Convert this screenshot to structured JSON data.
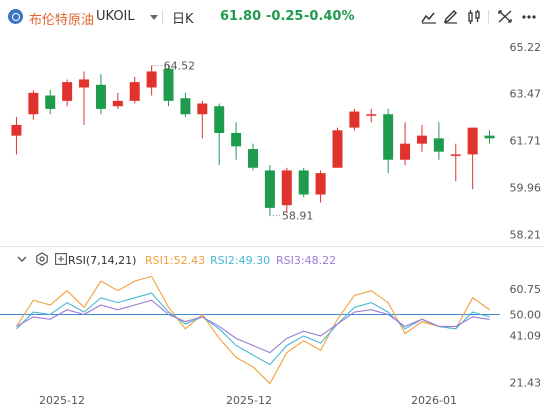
{
  "header": {
    "symbol_name": "布伦特原油",
    "symbol_code": "UKOIL",
    "period": "日K",
    "last_price": "61.80",
    "change": "-0.25",
    "change_pct": "-0.40%"
  },
  "colors": {
    "up": "#e0332e",
    "down": "#1f9b4d",
    "rsi1": "#f0a03c",
    "rsi2": "#47b6d6",
    "rsi3": "#9b7ad6",
    "rsi_ref": "#3c8cd6"
  },
  "toolbar_icons": [
    "chart-type-icon",
    "draw-icon",
    "settings-icon",
    "expand-icon",
    "more-icon"
  ],
  "chart_data": [
    {
      "type": "candlestick",
      "price_axis_ticks": [
        "65.22",
        "63.47",
        "61.71",
        "59.96",
        "58.21"
      ],
      "ylim": [
        58.0,
        65.4
      ],
      "annotations": {
        "high": "64.52",
        "low": "58.91"
      },
      "candles": [
        {
          "o": 61.9,
          "h": 62.6,
          "l": 61.2,
          "c": 62.3
        },
        {
          "o": 62.7,
          "h": 63.6,
          "l": 62.5,
          "c": 63.5
        },
        {
          "o": 63.4,
          "h": 63.6,
          "l": 62.7,
          "c": 62.9
        },
        {
          "o": 63.2,
          "h": 64.0,
          "l": 63.0,
          "c": 63.9
        },
        {
          "o": 63.7,
          "h": 64.3,
          "l": 62.3,
          "c": 64.0
        },
        {
          "o": 63.8,
          "h": 64.2,
          "l": 62.7,
          "c": 62.9
        },
        {
          "o": 63.0,
          "h": 63.5,
          "l": 62.9,
          "c": 63.2
        },
        {
          "o": 63.2,
          "h": 64.1,
          "l": 63.1,
          "c": 63.9
        },
        {
          "o": 63.7,
          "h": 64.52,
          "l": 63.4,
          "c": 64.3
        },
        {
          "o": 64.4,
          "h": 64.52,
          "l": 63.0,
          "c": 63.2
        },
        {
          "o": 63.3,
          "h": 63.5,
          "l": 62.6,
          "c": 62.7
        },
        {
          "o": 62.7,
          "h": 63.2,
          "l": 61.8,
          "c": 63.1
        },
        {
          "o": 63.0,
          "h": 63.1,
          "l": 60.8,
          "c": 62.0
        },
        {
          "o": 62.0,
          "h": 62.4,
          "l": 61.0,
          "c": 61.5
        },
        {
          "o": 61.4,
          "h": 61.6,
          "l": 60.6,
          "c": 60.7
        },
        {
          "o": 60.6,
          "h": 60.8,
          "l": 58.91,
          "c": 59.2
        },
        {
          "o": 59.3,
          "h": 60.7,
          "l": 59.0,
          "c": 60.6
        },
        {
          "o": 60.6,
          "h": 60.7,
          "l": 59.6,
          "c": 59.7
        },
        {
          "o": 59.7,
          "h": 60.6,
          "l": 59.4,
          "c": 60.5
        },
        {
          "o": 60.7,
          "h": 62.2,
          "l": 60.7,
          "c": 62.1
        },
        {
          "o": 62.2,
          "h": 62.9,
          "l": 62.1,
          "c": 62.8
        },
        {
          "o": 62.7,
          "h": 62.9,
          "l": 62.4,
          "c": 62.7
        },
        {
          "o": 62.7,
          "h": 62.9,
          "l": 60.5,
          "c": 61.0
        },
        {
          "o": 61.0,
          "h": 62.4,
          "l": 60.8,
          "c": 61.6
        },
        {
          "o": 61.6,
          "h": 62.3,
          "l": 61.3,
          "c": 61.9
        },
        {
          "o": 61.8,
          "h": 62.4,
          "l": 61.0,
          "c": 61.3
        },
        {
          "o": 61.2,
          "h": 61.6,
          "l": 60.2,
          "c": 61.2
        },
        {
          "o": 61.2,
          "h": 62.2,
          "l": 59.9,
          "c": 62.2
        },
        {
          "o": 61.9,
          "h": 62.1,
          "l": 61.6,
          "c": 61.8
        }
      ]
    },
    {
      "type": "line",
      "title": "RSI(7,14,21)",
      "axis_ticks": [
        "60.75",
        "50.00",
        "41.09",
        "21.43"
      ],
      "ylim": [
        20,
        67
      ],
      "reference_line": 50.0,
      "series": [
        {
          "name": "RSI1:52.43",
          "values": [
            45,
            56,
            54,
            60,
            53,
            64,
            60,
            64,
            66,
            53,
            44,
            50,
            40,
            32,
            28,
            21,
            34,
            39,
            35,
            48,
            58,
            60,
            55,
            42,
            47,
            45,
            44,
            57,
            52
          ]
        },
        {
          "name": "RSI2:49.30",
          "values": [
            44,
            51,
            50,
            55,
            51,
            57,
            55,
            57,
            59,
            51,
            46,
            49,
            44,
            37,
            33,
            29,
            37,
            41,
            38,
            46,
            53,
            55,
            51,
            44,
            48,
            45,
            44,
            51,
            49
          ]
        },
        {
          "name": "RSI3:48.22",
          "values": [
            45,
            49,
            48,
            52,
            50,
            54,
            52,
            54,
            56,
            50,
            47,
            49,
            45,
            40,
            37,
            34,
            40,
            43,
            41,
            46,
            51,
            52,
            50,
            45,
            48,
            45,
            45,
            49,
            48
          ]
        }
      ]
    }
  ],
  "rsi_header": {
    "label": "RSI(7,14,21)",
    "rsi1": "RSI1:52.43",
    "rsi2": "RSI2:49.30",
    "rsi3": "RSI3:48.22"
  },
  "x_axis_ticks": [
    "2025-12",
    "2025-12",
    "2026-01"
  ]
}
